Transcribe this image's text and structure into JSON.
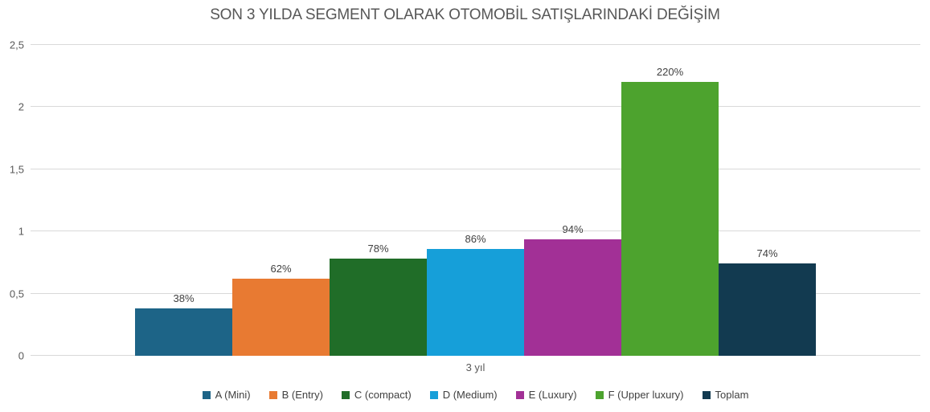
{
  "chart_data": {
    "type": "bar",
    "title": "SON 3 YILDA SEGMENT OLARAK OTOMOBİL SATIŞLARINDAKİ DEĞİŞİM",
    "categories": [
      "3 yıl"
    ],
    "series": [
      {
        "name": "A (Mini)",
        "values": [
          0.38
        ],
        "data_label": "38%",
        "color": "#1d6487"
      },
      {
        "name": "B (Entry)",
        "values": [
          0.62
        ],
        "data_label": "62%",
        "color": "#e87a32"
      },
      {
        "name": "C (compact)",
        "values": [
          0.78
        ],
        "data_label": "78%",
        "color": "#206d28"
      },
      {
        "name": "D (Medium)",
        "values": [
          0.86
        ],
        "data_label": "86%",
        "color": "#169fd9"
      },
      {
        "name": "E (Luxury)",
        "values": [
          0.94
        ],
        "data_label": "94%",
        "color": "#a23096"
      },
      {
        "name": "F (Upper luxury)",
        "values": [
          2.2
        ],
        "data_label": "220%",
        "color": "#4da32e"
      },
      {
        "name": "Toplam",
        "values": [
          0.74
        ],
        "data_label": "74%",
        "color": "#123a50"
      }
    ],
    "xlabel": "",
    "ylabel": "",
    "ylim": [
      0,
      2.5
    ],
    "y_ticks": [
      "0",
      "0,5",
      "1",
      "1,5",
      "2",
      "2,5"
    ],
    "grid": true,
    "legend_position": "bottom",
    "colors": {
      "gridline": "#d9d9d9",
      "axis_text": "#595959",
      "data_label_text": "#404040",
      "title_text": "#575757",
      "background": "#ffffff"
    }
  }
}
